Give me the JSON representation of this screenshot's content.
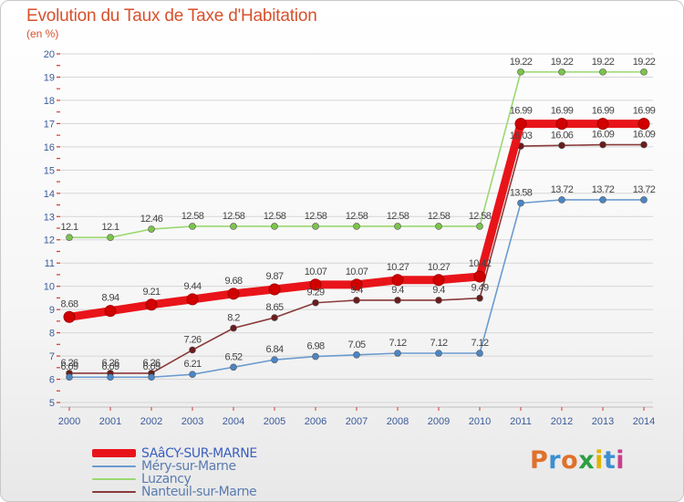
{
  "title": "Evolution du Taux de Taxe d'Habitation",
  "unit": "(en %)",
  "brand": "Proxiti",
  "colors": {
    "title": "#d9502b",
    "axis_text": "#3a5a9a",
    "tick": "#d23a2a",
    "grid": "#d6d6d6"
  },
  "chart_data": {
    "type": "line",
    "x": [
      "2000",
      "2001",
      "2002",
      "2003",
      "2004",
      "2005",
      "2006",
      "2007",
      "2008",
      "2009",
      "2010",
      "2011",
      "2012",
      "2013",
      "2014"
    ],
    "ylim": [
      5,
      20
    ],
    "yticks": [
      5,
      6,
      7,
      8,
      9,
      10,
      11,
      12,
      13,
      14,
      15,
      16,
      17,
      18,
      19,
      20
    ],
    "grid": true,
    "legend": "bottom-left",
    "series": [
      {
        "name": "SAâCY-SUR-MARNE",
        "color": "#e8141a",
        "marker_color": "#d10000",
        "label_color": "#444444",
        "values": [
          8.68,
          8.94,
          9.21,
          9.44,
          9.68,
          9.87,
          10.07,
          10.07,
          10.27,
          10.27,
          10.42,
          16.99,
          16.99,
          16.99,
          16.99
        ],
        "labels": [
          "8.68",
          "8.94",
          "9.21",
          "9.44",
          "9.68",
          "9.87",
          "10.07",
          "10.07",
          "10.27",
          "10.27",
          "10.42",
          "16.99",
          "16.99",
          "16.99",
          "16.99"
        ]
      },
      {
        "name": "Méry-sur-Marne",
        "color": "#6b9bcf",
        "marker_color": "#4a86c5",
        "label_color": "#444444",
        "values": [
          6.09,
          6.09,
          6.09,
          6.21,
          6.52,
          6.84,
          6.98,
          7.05,
          7.12,
          7.12,
          7.12,
          13.58,
          13.72,
          13.72,
          13.72
        ],
        "labels": [
          "6.09",
          "6.09",
          "6.09",
          "6.21",
          "6.52",
          "6.84",
          "6.98",
          "7.05",
          "7.12",
          "7.12",
          "7.12",
          "13.58",
          "13.72",
          "13.72",
          "13.72"
        ]
      },
      {
        "name": "Luzancy",
        "color": "#9ad870",
        "marker_color": "#7cc44a",
        "label_color": "#444444",
        "values": [
          12.1,
          12.1,
          12.46,
          12.58,
          12.58,
          12.58,
          12.58,
          12.58,
          12.58,
          12.58,
          12.58,
          19.22,
          19.22,
          19.22,
          19.22
        ],
        "labels": [
          "12.1",
          "12.1",
          "12.46",
          "12.58",
          "12.58",
          "12.58",
          "12.58",
          "12.58",
          "12.58",
          "12.58",
          "12.58",
          "19.22",
          "19.22",
          "19.22",
          "19.22"
        ]
      },
      {
        "name": "Nanteuil-sur-Marne",
        "color": "#8a3a3a",
        "marker_color": "#6a1c1c",
        "label_color": "#444444",
        "values": [
          6.26,
          6.26,
          6.26,
          7.26,
          8.2,
          8.65,
          9.29,
          9.4,
          9.4,
          9.4,
          9.49,
          16.03,
          16.06,
          16.09,
          16.09
        ],
        "labels": [
          "6.26",
          "6.26",
          "6.26",
          "7.26",
          "8.2",
          "8.65",
          "9.29",
          "9.4",
          "9.4",
          "9.4",
          "9.49",
          "16.03",
          "16.06",
          "16.09",
          "16.09"
        ]
      }
    ]
  }
}
